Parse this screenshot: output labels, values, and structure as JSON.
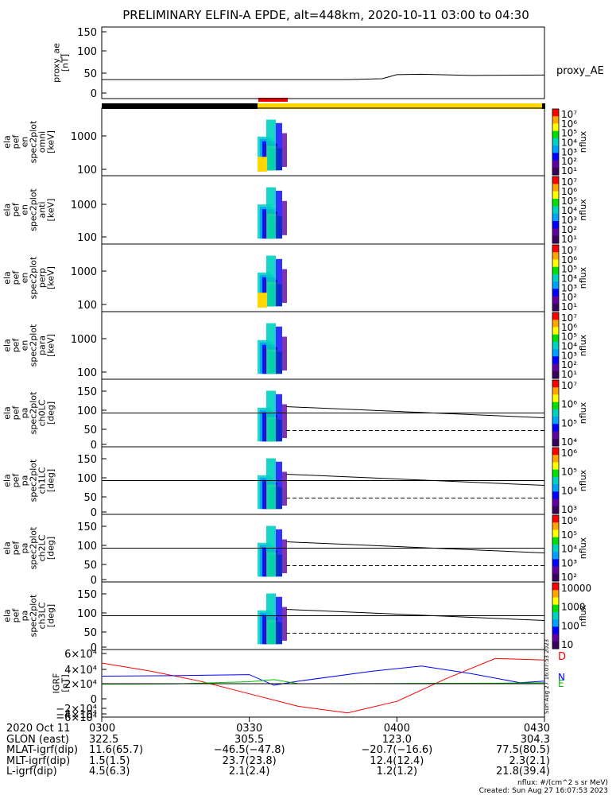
{
  "title": "PRELIMINARY ELFIN-A EPDE, alt=448km, 2020-10-11 03:00 to 04:30",
  "colors": {
    "orbit_black": "#000000",
    "orbit_yellow": "#ffd700",
    "science_red": "#ff0000",
    "igrf_D": "#ff0000",
    "igrf_N": "#0000ff",
    "igrf_E": "#00c000",
    "igrf_total": "#000000"
  },
  "panels": [
    {
      "label_lines": [
        "proxy_ae",
        "[nT]"
      ],
      "right_label": "proxy_AE",
      "ticks": [
        "150",
        "100",
        "50",
        "0"
      ]
    },
    {
      "label_lines": [
        "ela",
        "pef",
        "en",
        "spec2plot",
        "omni",
        "[keV]"
      ],
      "ticks": [
        "1000",
        "100"
      ],
      "cb_label": "nflux",
      "cb_ticks": [
        "10⁷",
        "10⁶",
        "10⁵",
        "10⁴",
        "10³",
        "10²",
        "10¹"
      ]
    },
    {
      "label_lines": [
        "ela",
        "pef",
        "en",
        "spec2plot",
        "anti",
        "[keV]"
      ],
      "ticks": [
        "1000",
        "100"
      ],
      "cb_label": "nflux",
      "cb_ticks": [
        "10⁷",
        "10⁶",
        "10⁵",
        "10⁴",
        "10³",
        "10²",
        "10¹"
      ]
    },
    {
      "label_lines": [
        "ela",
        "pef",
        "en",
        "spec2plot",
        "perp",
        "[keV]"
      ],
      "ticks": [
        "1000",
        "100"
      ],
      "cb_label": "nflux",
      "cb_ticks": [
        "10⁷",
        "10⁶",
        "10⁵",
        "10⁴",
        "10³",
        "10²",
        "10¹"
      ]
    },
    {
      "label_lines": [
        "ela",
        "pef",
        "en",
        "spec2plot",
        "para",
        "[keV]"
      ],
      "ticks": [
        "1000",
        "100"
      ],
      "cb_label": "nflux",
      "cb_ticks": [
        "10⁷",
        "10⁶",
        "10⁵",
        "10⁴",
        "10³",
        "10²",
        "10¹"
      ]
    },
    {
      "label_lines": [
        "ela",
        "pef",
        "pa",
        "spec2plot",
        "ch0LC",
        "[deg]"
      ],
      "ticks": [
        "150",
        "100",
        "50",
        "0"
      ],
      "cb_label": "nflux",
      "cb_ticks": [
        "10⁷",
        "10⁶",
        "10⁵",
        "10⁴"
      ]
    },
    {
      "label_lines": [
        "ela",
        "pef",
        "pa",
        "spec2plot",
        "ch1LC",
        "[deg]"
      ],
      "ticks": [
        "150",
        "100",
        "50",
        "0"
      ],
      "cb_label": "nflux",
      "cb_ticks": [
        "10⁶",
        "10⁵",
        "10⁴",
        "10³"
      ]
    },
    {
      "label_lines": [
        "ela",
        "pef",
        "pa",
        "spec2plot",
        "ch2LC",
        "[deg]"
      ],
      "ticks": [
        "150",
        "100",
        "50",
        "0"
      ],
      "cb_label": "nflux",
      "cb_ticks": [
        "10⁶",
        "10⁵",
        "10⁴",
        "10³",
        "10²"
      ]
    },
    {
      "label_lines": [
        "ela",
        "pef",
        "pa",
        "spec2plot",
        "ch3LC",
        "[deg]"
      ],
      "ticks": [
        "150",
        "100",
        "50",
        "0"
      ],
      "cb_label": "nflux",
      "cb_ticks": [
        "10000",
        "1000",
        "100",
        "10"
      ]
    },
    {
      "label_lines": [
        "IGRF",
        "[nT]"
      ],
      "ticks": [
        "6×10⁴",
        "4×10⁴",
        "2×10⁴",
        "0",
        "−2×10⁴",
        "−4×10⁴",
        "−6×10⁴"
      ],
      "right_labels": [
        "D",
        "N",
        "E"
      ]
    }
  ],
  "footer": {
    "rows": [
      {
        "label": "2020 Oct 11",
        "values": [
          "0300",
          "0330",
          "0400",
          "0430"
        ]
      },
      {
        "label": "GLON (east)",
        "values": [
          "322.5",
          "305.5",
          "123.0",
          "304.3"
        ]
      },
      {
        "label": "MLAT-igrf(dip)",
        "values": [
          "11.6(65.7)",
          "−46.5(−47.8)",
          "−20.7(−16.6)",
          "77.5(80.5)"
        ]
      },
      {
        "label": "MLT-igrf(dip)",
        "values": [
          "1.5(1.5)",
          "23.7(23.8)",
          "12.4(12.4)",
          "2.3(2.1)"
        ]
      },
      {
        "label": "L-igrf(dip)",
        "values": [
          "4.5(6.3)",
          "2.1(2.4)",
          "1.2(1.2)",
          "21.8(39.4)"
        ]
      }
    ],
    "note1": "nflux: #/(cm^2 s sr MeV)",
    "note2": "Created: Sun Aug 27 16:07:53 2023",
    "side_stamp": "Sun Aug 27 16:07:53 2023"
  },
  "chart_data": {
    "type": "line",
    "title": "PRELIMINARY ELFIN-A EPDE, alt=448km, 2020-10-11 03:00 to 04:30",
    "x_ticks": [
      "0300",
      "0330",
      "0400",
      "0430"
    ],
    "series": [
      {
        "name": "proxy_AE",
        "x": [
          "03:00",
          "03:30",
          "03:50",
          "03:57",
          "04:00",
          "04:05",
          "04:15",
          "04:30"
        ],
        "values": [
          33,
          33,
          33,
          35,
          45,
          46,
          43,
          44
        ]
      },
      {
        "name": "D",
        "x": [
          "03:00",
          "03:10",
          "03:20",
          "03:30",
          "03:40",
          "03:50",
          "04:00",
          "04:10",
          "04:20",
          "04:30"
        ],
        "values": [
          41000,
          25000,
          5000,
          -20000,
          -45000,
          -58000,
          -35000,
          10000,
          50000,
          47000
        ]
      },
      {
        "name": "N",
        "x": [
          "03:00",
          "03:15",
          "03:30",
          "03:35",
          "03:40",
          "03:55",
          "04:05",
          "04:15",
          "04:25",
          "04:30"
        ],
        "values": [
          15000,
          16000,
          18000,
          -3000,
          5000,
          25000,
          35000,
          20000,
          2000,
          5000
        ]
      },
      {
        "name": "E",
        "x": [
          "03:00",
          "03:15",
          "03:30",
          "03:35",
          "03:40",
          "04:00",
          "04:20",
          "04:30"
        ],
        "values": [
          -1000,
          -500,
          4000,
          8000,
          0,
          500,
          1000,
          2000
        ]
      }
    ],
    "ylim_proxy_ae": [
      0,
      160
    ],
    "ylim_igrf": [
      -60000,
      60000
    ]
  }
}
